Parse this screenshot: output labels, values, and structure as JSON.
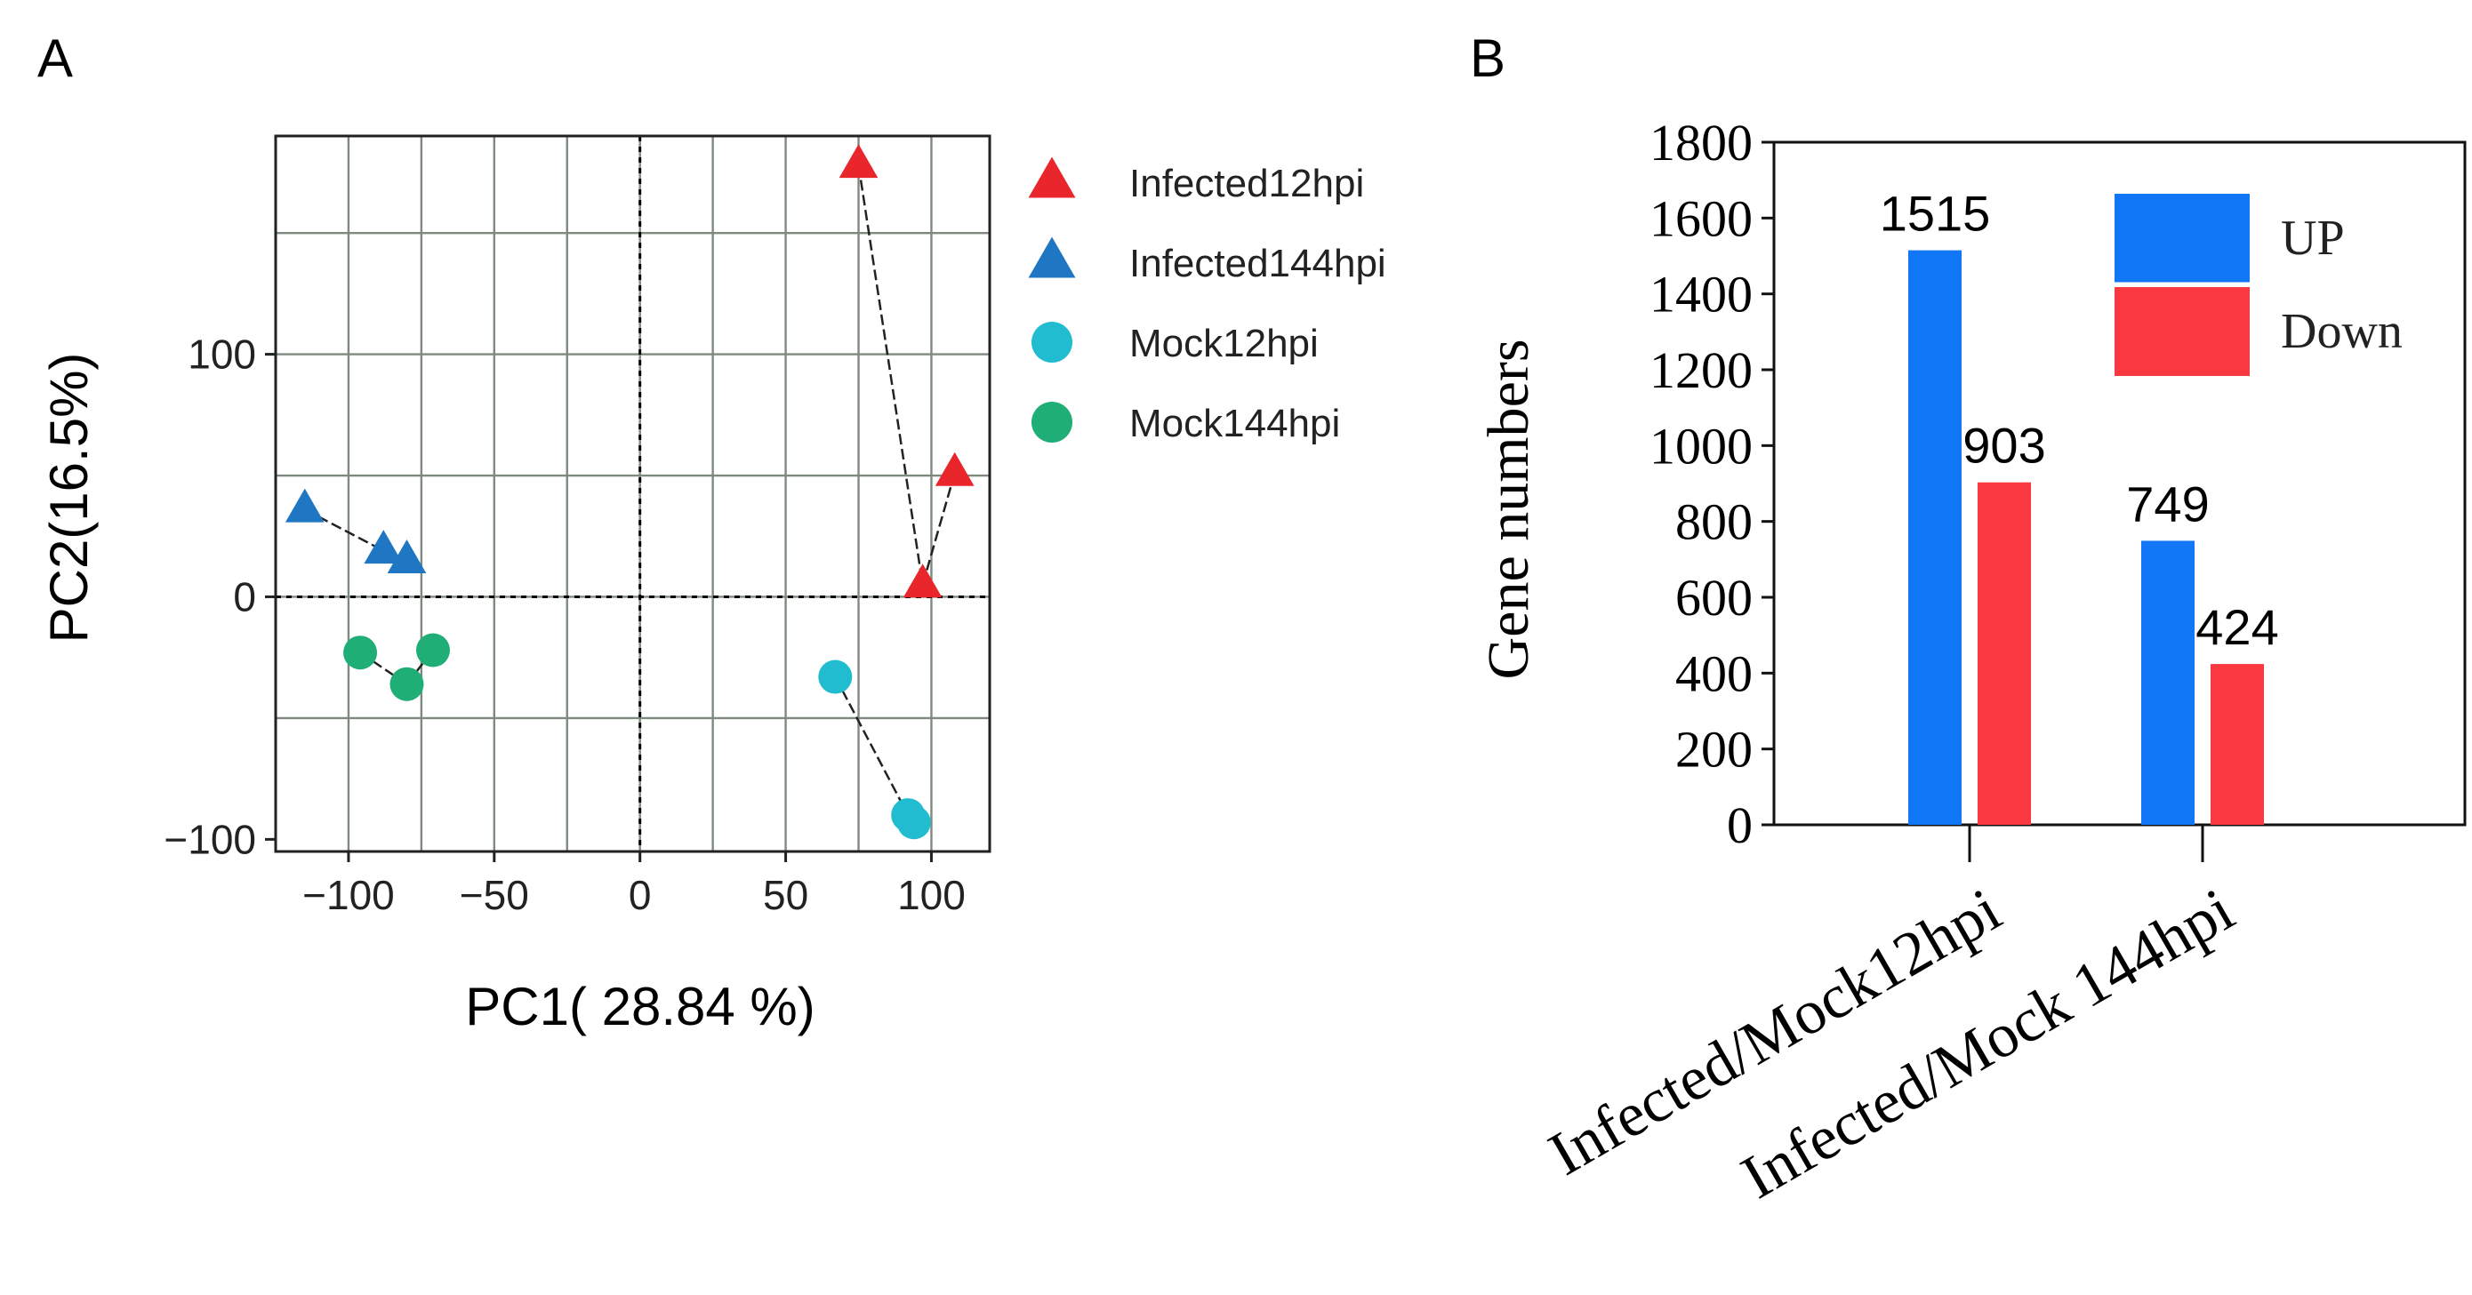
{
  "chart_data": [
    {
      "panel_label": "A",
      "type": "scatter",
      "xlabel": "PC1( 28.84 %)",
      "ylabel": "PC2(16.5%)",
      "xlim": [
        -125,
        120
      ],
      "ylim": [
        -105,
        190
      ],
      "xticks": [
        -100,
        -50,
        0,
        50,
        100
      ],
      "xtick_labels": [
        "−100",
        "−50",
        "0",
        "50",
        "100"
      ],
      "yticks": [
        -100,
        0,
        100
      ],
      "ytick_labels": [
        "−100",
        "0",
        "100"
      ],
      "grid_x": [
        -125,
        -100,
        -75,
        -50,
        -25,
        0,
        25,
        50,
        75,
        100,
        120
      ],
      "grid_y": [
        -105,
        -50,
        0,
        50,
        100,
        150,
        190
      ],
      "grid": true,
      "reference_lines": {
        "x": 0,
        "y": 0
      },
      "legend_position": "right",
      "series": [
        {
          "name": "Infected12hpi",
          "marker": "triangle",
          "color": "#e8262b",
          "points": [
            [
              75,
              178
            ],
            [
              108,
              51
            ],
            [
              97,
              5
            ]
          ],
          "links": [
            [
              0,
              2
            ],
            [
              2,
              1
            ]
          ]
        },
        {
          "name": "Infected144hpi",
          "marker": "triangle",
          "color": "#1f77c4",
          "points": [
            [
              -115,
              36
            ],
            [
              -88,
              19
            ],
            [
              -80,
              15
            ]
          ],
          "links": [
            [
              0,
              1
            ],
            [
              1,
              2
            ]
          ]
        },
        {
          "name": "Mock12hpi",
          "marker": "circle",
          "color": "#21bcd0",
          "points": [
            [
              67,
              -33
            ],
            [
              92,
              -90
            ],
            [
              94,
              -93
            ]
          ],
          "links": [
            [
              0,
              1
            ],
            [
              1,
              2
            ]
          ]
        },
        {
          "name": "Mock144hpi",
          "marker": "circle",
          "color": "#1fae75",
          "points": [
            [
              -96,
              -23
            ],
            [
              -80,
              -36
            ],
            [
              -71,
              -22
            ]
          ],
          "links": [
            [
              0,
              1
            ],
            [
              1,
              2
            ]
          ]
        }
      ]
    },
    {
      "panel_label": "B",
      "type": "bar",
      "ylabel": "Gene numbers",
      "xlabel": "",
      "ylim": [
        0,
        1800
      ],
      "yticks": [
        0,
        200,
        400,
        600,
        800,
        1000,
        1200,
        1400,
        1600,
        1800
      ],
      "categories": [
        "Infected/Mock12hpi",
        "Infected/Mock 144hpi"
      ],
      "series": [
        {
          "name": "UP",
          "color": "#1177f7",
          "values": [
            1515,
            749
          ]
        },
        {
          "name": "Down",
          "color": "#f9393f",
          "values": [
            903,
            424
          ]
        }
      ],
      "data_labels": [
        "1515",
        "903",
        "749",
        "424"
      ],
      "legend_position": "top-right"
    }
  ]
}
